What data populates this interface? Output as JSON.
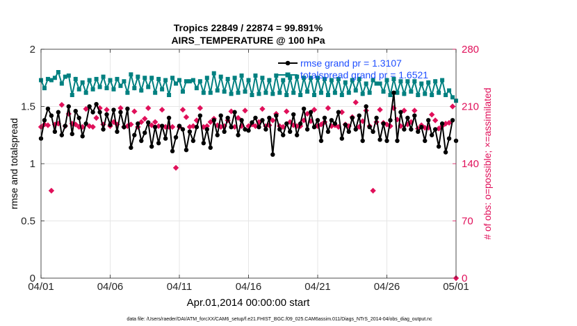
{
  "colors": {
    "rmse": "#000000",
    "spread": "#008080",
    "obs": "#e0105a",
    "grid": "#e6e6e6",
    "legend_text": "#1f4fff"
  },
  "chart_data": {
    "type": "line",
    "title_line1": "Tropics 22849 / 22874 = 99.891%",
    "title_line2": "AIRS_TEMPERATURE @ 100 hPa",
    "xlabel": "Apr.01,2014 00:00:00 start",
    "ylabel_left": "rmse and totalspread",
    "ylabel_right": "# of obs: o=possible; ×=assimilated",
    "xlim": [
      0,
      30
    ],
    "ylim_left": [
      0,
      2
    ],
    "ylim_right": [
      0,
      280
    ],
    "x_ticks": [
      0,
      5,
      10,
      15,
      20,
      25,
      30
    ],
    "x_tick_labels": [
      "04/01",
      "04/06",
      "04/11",
      "04/16",
      "04/21",
      "04/26",
      "05/01"
    ],
    "y_ticks_left": [
      0,
      0.5,
      1,
      1.5,
      2
    ],
    "y_tick_labels_left": [
      "0",
      "0.5",
      "1",
      "1.5",
      "2"
    ],
    "y_ticks_right": [
      0,
      70,
      140,
      210,
      280
    ],
    "y_tick_labels_right": [
      "0",
      "70",
      "140",
      "210",
      "280"
    ],
    "legend": [
      "rmse grand pr = 1.3107",
      "totalspread grand pr = 1.6521"
    ],
    "footer": "data file: /Users/raeder/DAI/ATM_forcXX/CAM6_setup/f.e21.FHIST_BGC.f09_025.CAM6assim.011/Diags_NTrS_2014-04/obs_diag_output.nc",
    "series": [
      {
        "name": "rmse",
        "axis": "left",
        "x": [
          0.0,
          0.25,
          0.5,
          0.75,
          1.0,
          1.25,
          1.5,
          1.75,
          2.0,
          2.25,
          2.5,
          2.75,
          3.0,
          3.25,
          3.5,
          3.75,
          4.0,
          4.25,
          4.5,
          4.75,
          5.0,
          5.25,
          5.5,
          5.75,
          6.0,
          6.25,
          6.5,
          6.75,
          7.0,
          7.25,
          7.5,
          7.75,
          8.0,
          8.25,
          8.5,
          8.75,
          9.0,
          9.25,
          9.5,
          9.75,
          10.0,
          10.25,
          10.5,
          10.75,
          11.0,
          11.25,
          11.5,
          11.75,
          12.0,
          12.25,
          12.5,
          12.75,
          13.0,
          13.25,
          13.5,
          13.75,
          14.0,
          14.25,
          14.5,
          14.75,
          15.0,
          15.25,
          15.5,
          15.75,
          16.0,
          16.25,
          16.5,
          16.75,
          17.0,
          17.25,
          17.5,
          17.75,
          18.0,
          18.25,
          18.5,
          18.75,
          19.0,
          19.25,
          19.5,
          19.75,
          20.0,
          20.25,
          20.5,
          20.75,
          21.0,
          21.25,
          21.5,
          21.75,
          22.0,
          22.25,
          22.5,
          22.75,
          23.0,
          23.25,
          23.5,
          23.75,
          24.0,
          24.25,
          24.5,
          24.75,
          25.0,
          25.25,
          25.5,
          25.75,
          26.0,
          26.25,
          26.5,
          26.75,
          27.0,
          27.25,
          27.5,
          27.75,
          28.0,
          28.25,
          28.5,
          28.75,
          29.0,
          29.25,
          29.5,
          29.75
        ],
        "values": [
          1.22,
          1.38,
          1.48,
          1.42,
          1.28,
          1.45,
          1.25,
          1.33,
          1.5,
          1.26,
          1.46,
          1.4,
          1.24,
          1.35,
          1.5,
          1.45,
          1.52,
          1.45,
          1.3,
          1.43,
          1.34,
          1.47,
          1.28,
          1.45,
          1.32,
          1.48,
          1.14,
          1.25,
          1.35,
          1.2,
          1.27,
          1.36,
          1.15,
          1.32,
          1.18,
          1.33,
          1.22,
          1.4,
          1.11,
          1.23,
          1.33,
          1.3,
          1.12,
          1.28,
          1.2,
          1.32,
          1.42,
          1.18,
          1.3,
          1.14,
          1.38,
          1.25,
          1.42,
          1.28,
          1.4,
          1.32,
          1.45,
          1.25,
          1.38,
          1.3,
          1.29,
          1.36,
          1.4,
          1.32,
          1.38,
          1.3,
          1.4,
          1.08,
          1.42,
          1.3,
          1.25,
          1.35,
          1.28,
          1.43,
          1.25,
          1.35,
          1.48,
          1.3,
          1.45,
          1.32,
          1.38,
          1.2,
          1.4,
          1.28,
          1.38,
          1.35,
          1.45,
          1.22,
          1.34,
          1.28,
          1.4,
          1.3,
          1.42,
          1.2,
          1.5,
          1.32,
          1.28,
          1.4,
          1.21,
          1.35,
          1.2,
          1.38,
          1.62,
          1.2,
          1.45,
          1.3,
          1.4,
          1.3,
          1.42,
          1.28,
          1.32,
          1.2,
          1.38,
          1.25,
          1.3,
          1.15,
          1.35,
          1.1,
          1.22,
          1.38
        ],
        "extra_points": [
          [
            30.0,
            1.2
          ]
        ]
      },
      {
        "name": "totalspread",
        "axis": "left",
        "x": [
          0.0,
          0.25,
          0.5,
          0.75,
          1.0,
          1.25,
          1.5,
          1.75,
          2.0,
          2.25,
          2.5,
          2.75,
          3.0,
          3.25,
          3.5,
          3.75,
          4.0,
          4.25,
          4.5,
          4.75,
          5.0,
          5.25,
          5.5,
          5.75,
          6.0,
          6.25,
          6.5,
          6.75,
          7.0,
          7.25,
          7.5,
          7.75,
          8.0,
          8.25,
          8.5,
          8.75,
          9.0,
          9.25,
          9.5,
          9.75,
          10.0,
          10.25,
          10.5,
          10.75,
          11.0,
          11.25,
          11.5,
          11.75,
          12.0,
          12.25,
          12.5,
          12.75,
          13.0,
          13.25,
          13.5,
          13.75,
          14.0,
          14.25,
          14.5,
          14.75,
          15.0,
          15.25,
          15.5,
          15.75,
          16.0,
          16.25,
          16.5,
          16.75,
          17.0,
          17.25,
          17.5,
          17.75,
          18.0,
          18.25,
          18.5,
          18.75,
          19.0,
          19.25,
          19.5,
          19.75,
          20.0,
          20.25,
          20.5,
          20.75,
          21.0,
          21.25,
          21.5,
          21.75,
          22.0,
          22.25,
          22.5,
          22.75,
          23.0,
          23.25,
          23.5,
          23.75,
          24.0,
          24.25,
          24.5,
          24.75,
          25.0,
          25.25,
          25.5,
          25.75,
          26.0,
          26.25,
          26.5,
          26.75,
          27.0,
          27.25,
          27.5,
          27.75,
          28.0,
          28.25,
          28.5,
          28.75,
          29.0,
          29.25,
          29.5,
          29.75
        ],
        "values": [
          1.73,
          1.66,
          1.74,
          1.73,
          1.75,
          1.8,
          1.7,
          1.76,
          1.77,
          1.6,
          1.74,
          1.65,
          1.71,
          1.62,
          1.73,
          1.65,
          1.74,
          1.67,
          1.76,
          1.66,
          1.73,
          1.65,
          1.74,
          1.68,
          1.72,
          1.62,
          1.78,
          1.66,
          1.76,
          1.64,
          1.75,
          1.67,
          1.75,
          1.62,
          1.74,
          1.65,
          1.73,
          1.6,
          1.75,
          1.7,
          1.73,
          1.63,
          1.72,
          1.72,
          1.73,
          1.66,
          1.72,
          1.62,
          1.75,
          1.62,
          1.79,
          1.64,
          1.76,
          1.63,
          1.74,
          1.61,
          1.75,
          1.62,
          1.77,
          1.63,
          1.73,
          1.6,
          1.77,
          1.61,
          1.75,
          1.62,
          1.73,
          1.61,
          1.77,
          1.62,
          1.73,
          1.6,
          1.75,
          1.62,
          1.76,
          1.6,
          1.75,
          1.63,
          1.75,
          1.6,
          1.75,
          1.62,
          1.74,
          1.6,
          1.73,
          1.62,
          1.74,
          1.6,
          1.71,
          1.62,
          1.73,
          1.64,
          1.74,
          1.61,
          1.7,
          1.62,
          1.73,
          1.7,
          1.7,
          1.63,
          1.73,
          1.6,
          1.74,
          1.62,
          1.72,
          1.61,
          1.72,
          1.63,
          1.72,
          1.6,
          1.7,
          1.61,
          1.71,
          1.6,
          1.72,
          1.62,
          1.73,
          1.6,
          1.64,
          1.58
        ],
        "extra_points": [
          [
            30.0,
            1.55
          ]
        ]
      },
      {
        "name": "obs assimilated",
        "axis": "right",
        "x": [
          0.0,
          0.25,
          0.5,
          0.75,
          1.0,
          1.25,
          1.5,
          1.75,
          2.0,
          2.25,
          2.5,
          2.75,
          3.0,
          3.25,
          3.5,
          3.75,
          4.0,
          4.25,
          4.5,
          4.75,
          5.0,
          5.25,
          5.5,
          5.75,
          6.0,
          6.25,
          6.5,
          6.75,
          7.0,
          7.25,
          7.5,
          7.75,
          8.0,
          8.25,
          8.5,
          8.75,
          9.0,
          9.25,
          9.5,
          9.75,
          10.0,
          10.25,
          10.5,
          10.75,
          11.0,
          11.25,
          11.5,
          11.75,
          12.0,
          12.25,
          12.5,
          12.75,
          13.0,
          13.25,
          13.5,
          13.75,
          14.0,
          14.25,
          14.5,
          14.75,
          15.0,
          15.25,
          15.5,
          15.75,
          16.0,
          16.25,
          16.5,
          16.75,
          17.0,
          17.25,
          17.5,
          17.75,
          18.0,
          18.25,
          18.5,
          18.75,
          19.0,
          19.25,
          19.5,
          19.75,
          20.0,
          20.25,
          20.5,
          20.75,
          21.0,
          21.25,
          21.5,
          21.75,
          22.0,
          22.25,
          22.5,
          22.75,
          23.0,
          23.25,
          23.5,
          23.75,
          24.0,
          24.25,
          24.5,
          24.75,
          25.0,
          25.25,
          25.5,
          25.75,
          26.0,
          26.25,
          26.5,
          26.75,
          27.0,
          27.25,
          27.5,
          27.75,
          28.0,
          28.25,
          28.5,
          28.75,
          29.0,
          29.25,
          29.5,
          29.75,
          30.0
        ],
        "values": [
          185,
          188,
          187,
          107,
          188,
          189,
          212,
          186,
          201,
          189,
          188,
          185,
          185,
          207,
          186,
          185,
          196,
          208,
          188,
          206,
          186,
          191,
          188,
          208,
          185,
          186,
          188,
          204,
          185,
          191,
          195,
          208,
          187,
          191,
          186,
          206,
          185,
          185,
          185,
          135,
          185,
          206,
          197,
          185,
          186,
          193,
          208,
          185,
          186,
          191,
          195,
          187,
          185,
          186,
          193,
          204,
          185,
          196,
          186,
          205,
          186,
          188,
          186,
          191,
          207,
          186,
          187,
          193,
          201,
          186,
          185,
          204,
          191,
          187,
          186,
          186,
          193,
          201,
          192,
          206,
          186,
          188,
          191,
          208,
          186,
          187,
          185,
          203,
          188,
          186,
          197,
          215,
          185,
          192,
          205,
          186,
          107,
          191,
          206,
          190,
          188,
          186,
          208,
          194,
          186,
          205,
          188,
          191,
          205,
          183,
          187,
          184,
          184,
          200,
          193,
          183,
          186,
          189,
          190,
          210,
          0
        ]
      }
    ]
  }
}
